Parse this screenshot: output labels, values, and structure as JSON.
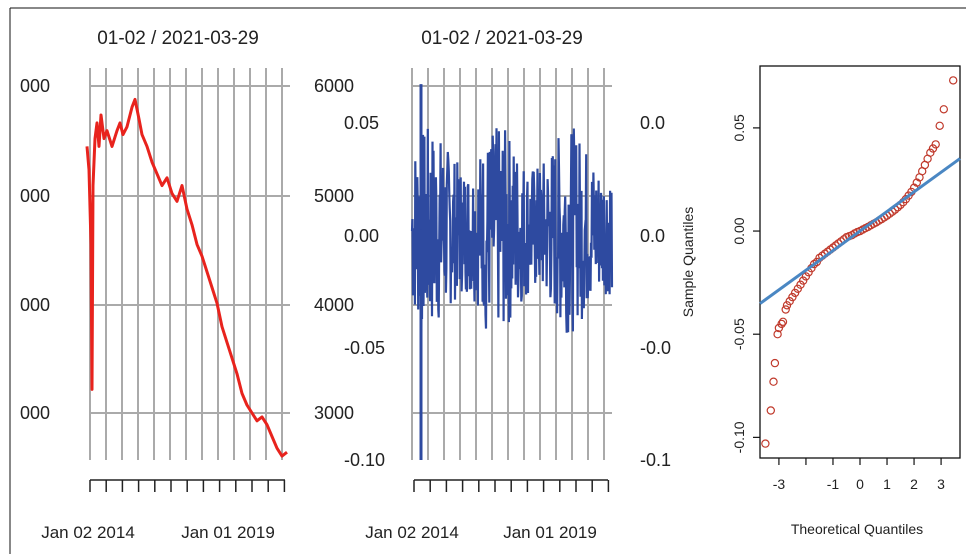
{
  "chart_data": [
    {
      "type": "line",
      "title": "01-02 / 2021-03-29",
      "y_tick_labels": [
        "000",
        "000",
        "000",
        "000"
      ],
      "x_tick_labels": [
        "Jan 02 2014",
        "Jan 01 2019"
      ],
      "grid": true,
      "series": [
        {
          "color": "#e8231d",
          "x": [
            0,
            2,
            4,
            5,
            6,
            8,
            10,
            12,
            14,
            17,
            20,
            25,
            30,
            33,
            36,
            40,
            45,
            48,
            52,
            55,
            60,
            65,
            70,
            75,
            80,
            85,
            90,
            95,
            100,
            105,
            110,
            115,
            120,
            125,
            130,
            135,
            140,
            145,
            150,
            155,
            160,
            165,
            170,
            175,
            180,
            185,
            190,
            195,
            200
          ],
          "y": [
            0.8,
            0.74,
            0.55,
            0.18,
            0.7,
            0.82,
            0.86,
            0.8,
            0.88,
            0.82,
            0.84,
            0.8,
            0.84,
            0.86,
            0.83,
            0.85,
            0.9,
            0.92,
            0.87,
            0.83,
            0.8,
            0.76,
            0.73,
            0.7,
            0.72,
            0.68,
            0.66,
            0.7,
            0.64,
            0.6,
            0.55,
            0.52,
            0.48,
            0.44,
            0.4,
            0.34,
            0.3,
            0.26,
            0.22,
            0.17,
            0.14,
            0.12,
            0.1,
            0.11,
            0.09,
            0.06,
            0.03,
            0.01,
            0.02
          ]
        }
      ]
    },
    {
      "type": "line",
      "title": "01-02 / 2021-03-29",
      "left_axis_labels": [
        "6000",
        "5000",
        "4000",
        "3000"
      ],
      "right_axis_labels": [
        "0.05",
        "0.00",
        "-0.05",
        "-0.10"
      ],
      "x_tick_labels": [
        "Jan 02 2014",
        "Jan 01 2019"
      ],
      "ylim": [
        -0.1,
        0.07
      ],
      "grid": true,
      "series": [
        {
          "color": "#2e4aa0",
          "amplitude_low": 0.028,
          "amplitude_high": 0.045,
          "spikes": [
            {
              "x": 0.045,
              "y": 0.063
            },
            {
              "x": 0.045,
              "y": -0.1
            },
            {
              "x": 0.82,
              "y": 0.036
            },
            {
              "x": 0.46,
              "y": 0.03
            },
            {
              "x": 0.37,
              "y": -0.043
            }
          ]
        }
      ]
    },
    {
      "type": "scatter",
      "xlabel": "Theoretical Quantiles",
      "ylabel": "Sample Quantiles",
      "left_axis_labels": [
        "0.0",
        "0.0",
        "-0.0",
        "-0.1"
      ],
      "x_tick_labels": [
        "-3",
        "-1",
        "0",
        "1",
        "2",
        "3"
      ],
      "y_tick_labels": [
        "0.05",
        "0.00",
        "-0.05",
        "-0.10"
      ],
      "xlim": [
        -3.7,
        3.7
      ],
      "ylim": [
        -0.11,
        0.08
      ],
      "point_color": "#c0392b",
      "line_color": "#4a87c3",
      "points": [
        [
          -3.5,
          -0.103
        ],
        [
          -3.3,
          -0.087
        ],
        [
          -3.2,
          -0.073
        ],
        [
          -3.15,
          -0.064
        ],
        [
          -3.05,
          -0.05
        ],
        [
          -3.0,
          -0.047
        ],
        [
          -2.9,
          -0.045
        ],
        [
          -2.85,
          -0.044
        ],
        [
          -2.75,
          -0.038
        ],
        [
          -2.7,
          -0.036
        ],
        [
          -2.6,
          -0.034
        ],
        [
          -2.5,
          -0.032
        ],
        [
          -2.4,
          -0.03
        ],
        [
          -2.3,
          -0.028
        ],
        [
          -2.2,
          -0.026
        ],
        [
          -2.1,
          -0.024
        ],
        [
          -2.0,
          -0.022
        ],
        [
          -1.9,
          -0.02
        ],
        [
          -1.8,
          -0.018
        ],
        [
          -1.7,
          -0.016
        ],
        [
          -1.6,
          -0.015
        ],
        [
          -1.5,
          -0.013
        ],
        [
          -1.4,
          -0.012
        ],
        [
          -1.3,
          -0.011
        ],
        [
          -1.2,
          -0.01
        ],
        [
          -1.1,
          -0.009
        ],
        [
          -1.0,
          -0.008
        ],
        [
          -0.9,
          -0.007
        ],
        [
          -0.8,
          -0.006
        ],
        [
          -0.7,
          -0.005
        ],
        [
          -0.6,
          -0.004
        ],
        [
          -0.5,
          -0.003
        ],
        [
          -0.4,
          -0.0025
        ],
        [
          -0.3,
          -0.002
        ],
        [
          -0.2,
          -0.0012
        ],
        [
          -0.1,
          -0.0005
        ],
        [
          0.0,
          0.0
        ],
        [
          0.1,
          0.0007
        ],
        [
          0.2,
          0.0014
        ],
        [
          0.3,
          0.002
        ],
        [
          0.4,
          0.0028
        ],
        [
          0.5,
          0.0035
        ],
        [
          0.6,
          0.0042
        ],
        [
          0.7,
          0.005
        ],
        [
          0.8,
          0.0058
        ],
        [
          0.9,
          0.0066
        ],
        [
          1.0,
          0.0075
        ],
        [
          1.1,
          0.0084
        ],
        [
          1.2,
          0.0094
        ],
        [
          1.3,
          0.0104
        ],
        [
          1.4,
          0.0115
        ],
        [
          1.5,
          0.0127
        ],
        [
          1.6,
          0.014
        ],
        [
          1.7,
          0.0155
        ],
        [
          1.8,
          0.0172
        ],
        [
          1.9,
          0.019
        ],
        [
          2.0,
          0.021
        ],
        [
          2.1,
          0.0235
        ],
        [
          2.2,
          0.026
        ],
        [
          2.3,
          0.029
        ],
        [
          2.4,
          0.032
        ],
        [
          2.5,
          0.035
        ],
        [
          2.6,
          0.038
        ],
        [
          2.7,
          0.04
        ],
        [
          2.8,
          0.042
        ],
        [
          2.95,
          0.051
        ],
        [
          3.1,
          0.059
        ],
        [
          3.45,
          0.073
        ]
      ],
      "reference_line": {
        "slope": 0.0095,
        "intercept": 0.0
      }
    }
  ]
}
